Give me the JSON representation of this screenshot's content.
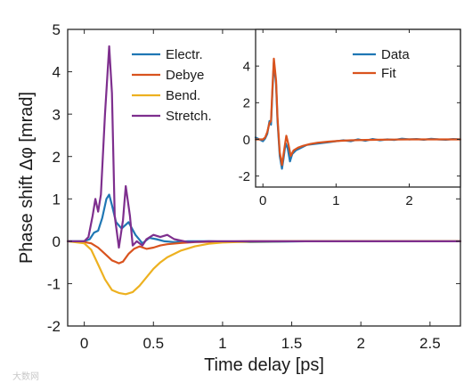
{
  "chart_data": [
    {
      "type": "line",
      "xlabel": "Time delay [ps]",
      "ylabel": "Phase shift Δφ [mrad]",
      "xlim": [
        -0.12,
        2.72
      ],
      "ylim": [
        -2,
        5
      ],
      "xticks": [
        0,
        0.5,
        1,
        1.5,
        2,
        2.5
      ],
      "xtick_labels": [
        "0",
        "0.5",
        "1",
        "1.5",
        "2",
        "2.5"
      ],
      "yticks": [
        -2,
        -1,
        0,
        1,
        2,
        3,
        4,
        5
      ],
      "ytick_labels": [
        "-2",
        "-1",
        "0",
        "1",
        "2",
        "3",
        "4",
        "5"
      ],
      "legend_position": "top-left",
      "series": [
        {
          "name": "Electr.",
          "color": "#1f77b4",
          "x": [
            -0.12,
            0.0,
            0.04,
            0.07,
            0.1,
            0.13,
            0.16,
            0.18,
            0.2,
            0.23,
            0.27,
            0.32,
            0.37,
            0.42,
            0.47,
            0.52,
            0.58,
            0.65,
            0.75,
            0.9,
            1.2,
            1.6,
            2.0,
            2.72
          ],
          "y": [
            0.0,
            0.0,
            0.05,
            0.2,
            0.25,
            0.55,
            1.0,
            1.1,
            0.85,
            0.45,
            0.3,
            0.45,
            0.15,
            -0.05,
            0.08,
            0.05,
            0.0,
            -0.02,
            0.0,
            0.0,
            -0.02,
            0.0,
            0.0,
            0.0
          ]
        },
        {
          "name": "Debye",
          "color": "#d9531e",
          "x": [
            -0.12,
            0.0,
            0.05,
            0.1,
            0.15,
            0.2,
            0.25,
            0.28,
            0.32,
            0.36,
            0.4,
            0.45,
            0.5,
            0.55,
            0.6,
            0.7,
            0.8,
            1.0,
            1.2,
            1.5,
            2.0,
            2.72
          ],
          "y": [
            0.0,
            -0.02,
            -0.05,
            -0.15,
            -0.3,
            -0.45,
            -0.52,
            -0.48,
            -0.3,
            -0.18,
            -0.12,
            -0.18,
            -0.15,
            -0.1,
            -0.07,
            -0.04,
            -0.02,
            -0.01,
            0.0,
            0.0,
            0.0,
            0.0
          ]
        },
        {
          "name": "Bend.",
          "color": "#edb120",
          "x": [
            -0.12,
            0.0,
            0.05,
            0.1,
            0.15,
            0.2,
            0.25,
            0.3,
            0.35,
            0.4,
            0.45,
            0.5,
            0.55,
            0.6,
            0.7,
            0.8,
            0.9,
            1.0,
            1.2,
            1.5,
            2.0,
            2.72
          ],
          "y": [
            0.0,
            -0.05,
            -0.2,
            -0.55,
            -0.9,
            -1.15,
            -1.22,
            -1.25,
            -1.2,
            -1.05,
            -0.85,
            -0.65,
            -0.5,
            -0.38,
            -0.22,
            -0.12,
            -0.06,
            -0.03,
            -0.01,
            0.0,
            0.0,
            0.0
          ]
        },
        {
          "name": "Stretch.",
          "color": "#7e2f8e",
          "x": [
            -0.12,
            0.0,
            0.03,
            0.06,
            0.08,
            0.1,
            0.12,
            0.15,
            0.18,
            0.2,
            0.22,
            0.25,
            0.28,
            0.3,
            0.33,
            0.35,
            0.38,
            0.42,
            0.45,
            0.5,
            0.55,
            0.6,
            0.65,
            0.75,
            0.9,
            1.1,
            1.5,
            2.0,
            2.72
          ],
          "y": [
            0.0,
            0.0,
            0.1,
            0.6,
            1.0,
            0.7,
            1.1,
            3.0,
            4.6,
            3.5,
            0.6,
            -0.15,
            0.5,
            1.3,
            0.6,
            -0.1,
            0.0,
            -0.1,
            0.05,
            0.15,
            0.1,
            0.15,
            0.05,
            -0.02,
            0.0,
            0.0,
            0.0,
            0.0,
            0.0
          ]
        }
      ]
    },
    {
      "type": "line",
      "xlim": [
        -0.1,
        2.7
      ],
      "ylim": [
        -2.6,
        6.0
      ],
      "xticks": [
        0,
        1,
        2
      ],
      "xtick_labels": [
        "0",
        "1",
        "2"
      ],
      "yticks": [
        -2,
        0,
        2,
        4
      ],
      "ytick_labels": [
        "-2",
        "0",
        "2",
        "4"
      ],
      "legend_position": "top-right",
      "series": [
        {
          "name": "Data",
          "color": "#1f77b4",
          "x": [
            -0.1,
            0.0,
            0.03,
            0.06,
            0.09,
            0.11,
            0.13,
            0.15,
            0.18,
            0.2,
            0.23,
            0.26,
            0.28,
            0.31,
            0.34,
            0.37,
            0.4,
            0.45,
            0.5,
            0.6,
            0.7,
            0.8,
            0.9,
            1.0,
            1.1,
            1.2,
            1.3,
            1.4,
            1.5,
            1.6,
            1.7,
            1.8,
            1.9,
            2.0,
            2.1,
            2.2,
            2.3,
            2.4,
            2.5,
            2.6,
            2.7
          ],
          "y": [
            0.1,
            -0.1,
            0.05,
            0.3,
            1.0,
            0.8,
            2.6,
            4.2,
            3.0,
            1.0,
            -0.9,
            -1.6,
            -1.1,
            -0.2,
            -0.5,
            -1.2,
            -0.8,
            -0.6,
            -0.5,
            -0.3,
            -0.25,
            -0.2,
            -0.15,
            -0.1,
            -0.05,
            -0.1,
            0.0,
            -0.08,
            0.02,
            -0.05,
            0.0,
            -0.03,
            0.04,
            0.0,
            0.02,
            -0.02,
            0.03,
            0.0,
            -0.02,
            0.02,
            0.0
          ]
        },
        {
          "name": "Fit",
          "color": "#d9531e",
          "x": [
            -0.1,
            0.0,
            0.03,
            0.06,
            0.09,
            0.11,
            0.13,
            0.15,
            0.18,
            0.2,
            0.23,
            0.26,
            0.29,
            0.32,
            0.35,
            0.38,
            0.42,
            0.48,
            0.55,
            0.65,
            0.75,
            0.9,
            1.05,
            1.2,
            1.4,
            1.6,
            1.8,
            2.0,
            2.2,
            2.4,
            2.6,
            2.7
          ],
          "y": [
            0.0,
            0.0,
            0.1,
            0.4,
            0.9,
            1.0,
            2.8,
            4.4,
            3.2,
            1.2,
            -0.7,
            -1.4,
            -0.6,
            0.2,
            -0.3,
            -0.9,
            -0.6,
            -0.45,
            -0.35,
            -0.25,
            -0.18,
            -0.12,
            -0.08,
            -0.05,
            -0.03,
            -0.02,
            -0.01,
            0.0,
            0.0,
            0.0,
            0.0,
            0.0
          ]
        }
      ]
    }
  ],
  "watermark": "大数网"
}
